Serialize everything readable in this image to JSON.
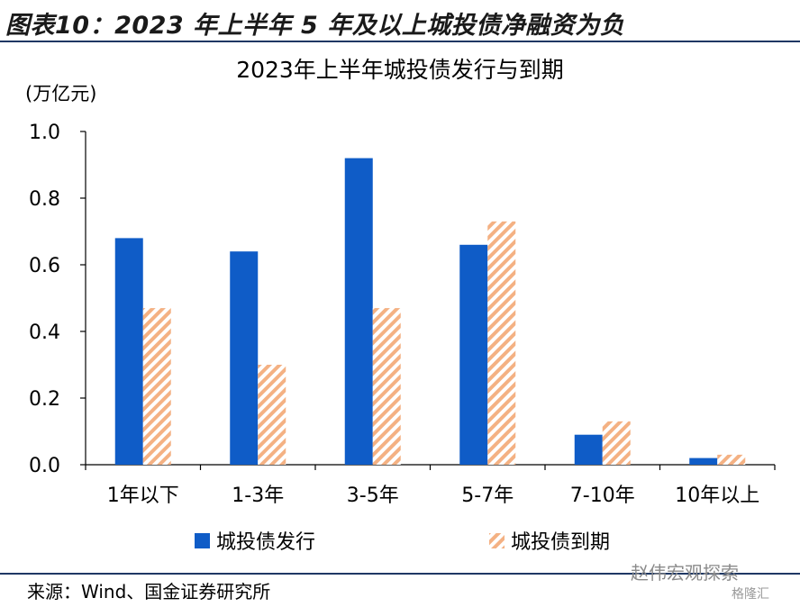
{
  "header": {
    "title": "图表10：2023 年上半年 5 年及以上城投债净融资为负"
  },
  "chart_data": {
    "type": "bar",
    "title": "2023年上半年城投债发行与到期",
    "ylabel": "(万亿元)",
    "xlabel": "",
    "categories": [
      "1年以下",
      "1-3年",
      "3-5年",
      "5-7年",
      "7-10年",
      "10年以上"
    ],
    "series": [
      {
        "name": "城投债发行",
        "values": [
          0.68,
          0.64,
          0.92,
          0.66,
          0.09,
          0.02
        ],
        "color": "#0f5cc7",
        "pattern": "solid"
      },
      {
        "name": "城投债到期",
        "values": [
          0.47,
          0.3,
          0.47,
          0.73,
          0.13,
          0.03
        ],
        "color": "#f4b183",
        "pattern": "diagonal-hatch"
      }
    ],
    "ylim": [
      0,
      1.0
    ],
    "yticks": [
      "0.0",
      "0.2",
      "0.4",
      "0.6",
      "0.8",
      "1.0"
    ],
    "grid": false,
    "legend_position": "bottom"
  },
  "footer": {
    "source": "来源：Wind、国金证券研究所",
    "watermark": "赵伟宏观探索",
    "watermark2": "格隆汇"
  }
}
